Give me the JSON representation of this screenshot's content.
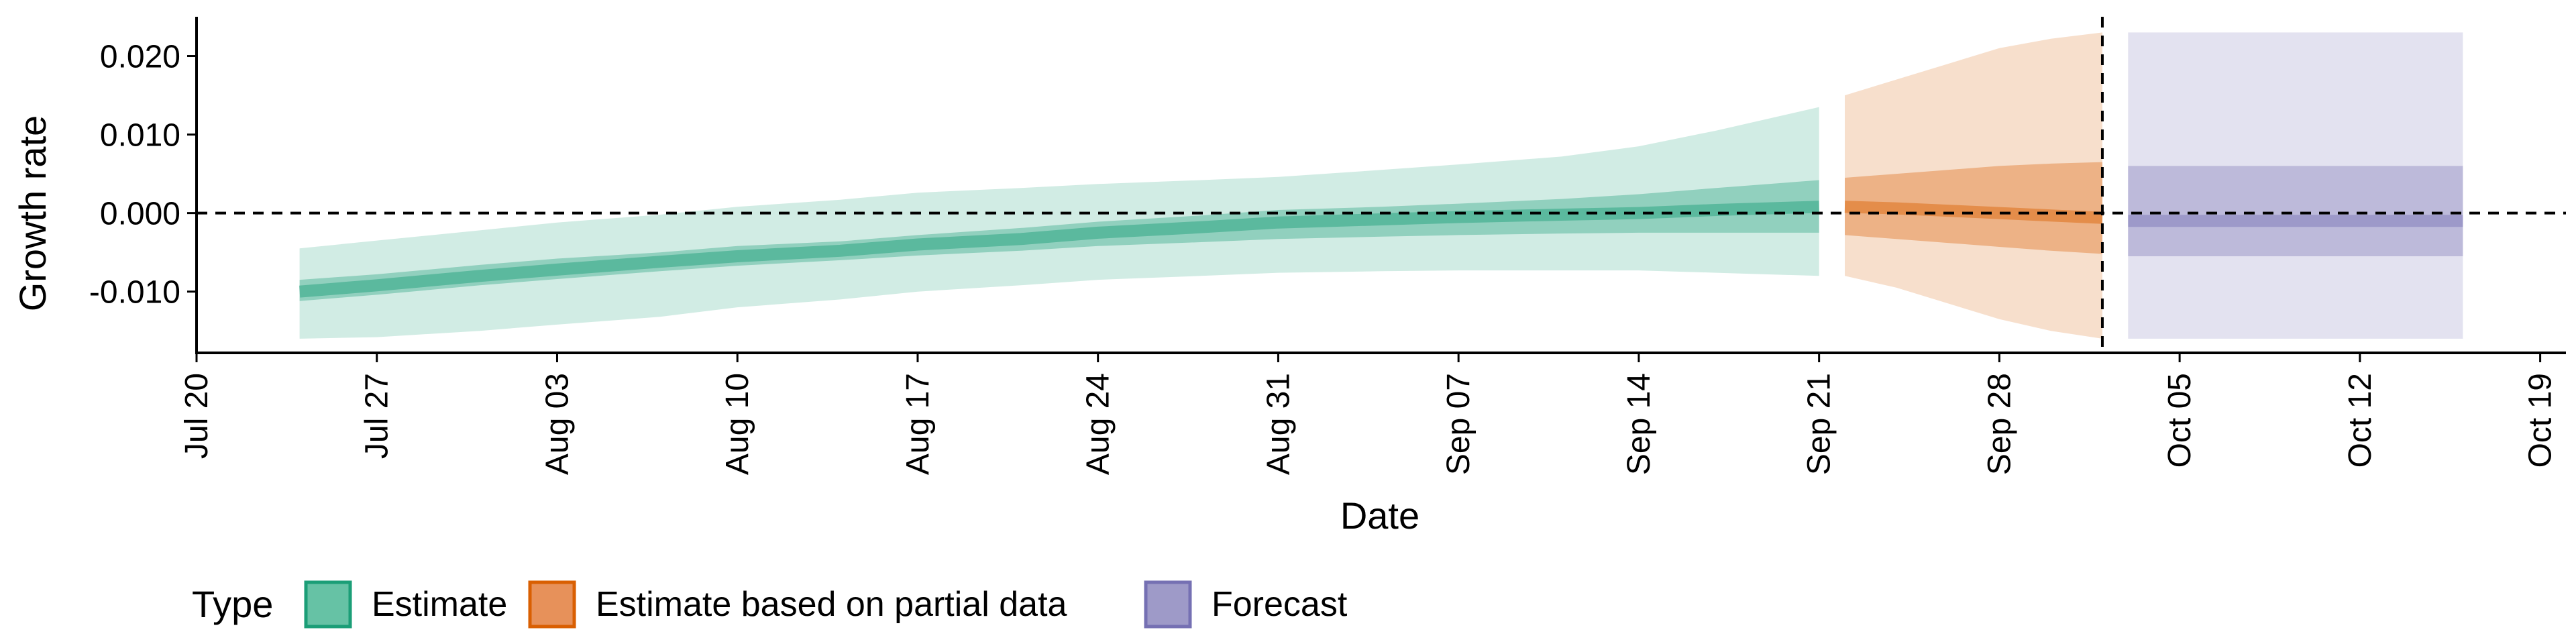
{
  "chart_data": {
    "type": "area",
    "title": "",
    "xlabel": "Date",
    "ylabel": "Growth rate",
    "x_ticks": [
      "Jul 20",
      "Jul 27",
      "Aug 03",
      "Aug 10",
      "Aug 17",
      "Aug 24",
      "Aug 31",
      "Sep 07",
      "Sep 14",
      "Sep 21",
      "Sep 28",
      "Oct 05",
      "Oct 12",
      "Oct 19"
    ],
    "y_ticks": [
      "-0.010",
      "0.000",
      "0.010",
      "0.020"
    ],
    "xlim": [
      "2020-07-20",
      "2020-10-20"
    ],
    "ylim": [
      -0.0178,
      0.025
    ],
    "reference_lines": [
      {
        "axis": "y",
        "value": 0.0,
        "style": "dashed"
      },
      {
        "axis": "x",
        "value": "2020-10-02",
        "style": "dashed"
      }
    ],
    "legend": {
      "title": "Type",
      "position": "bottom-left",
      "entries": [
        {
          "label": "Estimate",
          "color": "#66C2A5"
        },
        {
          "label": "Estimate based on partial data",
          "color": "#E7915A"
        },
        {
          "label": "Forecast",
          "color": "#9E9AC8"
        }
      ]
    },
    "series": [
      {
        "name": "Estimate",
        "color": "#1B9E77",
        "x": [
          "2020-07-24",
          "2020-07-27",
          "2020-07-31",
          "2020-08-03",
          "2020-08-07",
          "2020-08-10",
          "2020-08-14",
          "2020-08-17",
          "2020-08-21",
          "2020-08-24",
          "2020-08-28",
          "2020-08-31",
          "2020-09-04",
          "2020-09-07",
          "2020-09-11",
          "2020-09-14",
          "2020-09-17",
          "2020-09-21"
        ],
        "median": [
          -0.01,
          -0.0092,
          -0.008,
          -0.0072,
          -0.0062,
          -0.0055,
          -0.0048,
          -0.004,
          -0.0033,
          -0.0025,
          -0.0018,
          -0.0012,
          -0.0008,
          -0.0005,
          -0.0002,
          0.0,
          0.0004,
          0.0008
        ],
        "inner_lower": [
          -0.0112,
          -0.0104,
          -0.0092,
          -0.0084,
          -0.0074,
          -0.0067,
          -0.006,
          -0.0054,
          -0.0048,
          -0.0042,
          -0.0037,
          -0.0033,
          -0.003,
          -0.0028,
          -0.0026,
          -0.0025,
          -0.0025,
          -0.0025
        ],
        "inner_upper": [
          -0.0085,
          -0.0078,
          -0.0066,
          -0.0058,
          -0.005,
          -0.0042,
          -0.0036,
          -0.0028,
          -0.0019,
          -0.0011,
          -0.0003,
          0.0004,
          0.0008,
          0.0012,
          0.0018,
          0.0024,
          0.0032,
          0.0042
        ],
        "outer_lower": [
          -0.016,
          -0.0158,
          -0.015,
          -0.0142,
          -0.0132,
          -0.012,
          -0.011,
          -0.01,
          -0.0092,
          -0.0085,
          -0.008,
          -0.0076,
          -0.0074,
          -0.0073,
          -0.0073,
          -0.0073,
          -0.0076,
          -0.008
        ],
        "outer_upper": [
          -0.0045,
          -0.0035,
          -0.0022,
          -0.0012,
          -0.0002,
          0.0008,
          0.0017,
          0.0026,
          0.0032,
          0.0037,
          0.0042,
          0.0046,
          0.0055,
          0.0062,
          0.0072,
          0.0085,
          0.0105,
          0.0135
        ]
      },
      {
        "name": "Estimate based on partial data",
        "color": "#D95F02",
        "x": [
          "2020-09-22",
          "2020-09-24",
          "2020-09-26",
          "2020-09-28",
          "2020-09-30",
          "2020-10-02"
        ],
        "median": [
          0.0008,
          0.0006,
          0.0003,
          0.0,
          -0.0003,
          -0.0006
        ],
        "inner_lower": [
          -0.0028,
          -0.0033,
          -0.0038,
          -0.0043,
          -0.0048,
          -0.0052
        ],
        "inner_upper": [
          0.0045,
          0.005,
          0.0055,
          0.006,
          0.0063,
          0.0065
        ],
        "outer_lower": [
          -0.008,
          -0.0095,
          -0.0115,
          -0.0135,
          -0.015,
          -0.016
        ],
        "outer_upper": [
          0.015,
          0.017,
          0.019,
          0.021,
          0.0222,
          0.023
        ]
      },
      {
        "name": "Forecast",
        "color": "#7570B3",
        "x": [
          "2020-10-03",
          "2020-10-16"
        ],
        "median": [
          -0.001,
          -0.001
        ],
        "inner_lower": [
          -0.0055,
          -0.0055
        ],
        "inner_upper": [
          0.006,
          0.006
        ],
        "outer_lower": [
          -0.016,
          -0.016
        ],
        "outer_upper": [
          0.023,
          0.023
        ]
      }
    ]
  }
}
